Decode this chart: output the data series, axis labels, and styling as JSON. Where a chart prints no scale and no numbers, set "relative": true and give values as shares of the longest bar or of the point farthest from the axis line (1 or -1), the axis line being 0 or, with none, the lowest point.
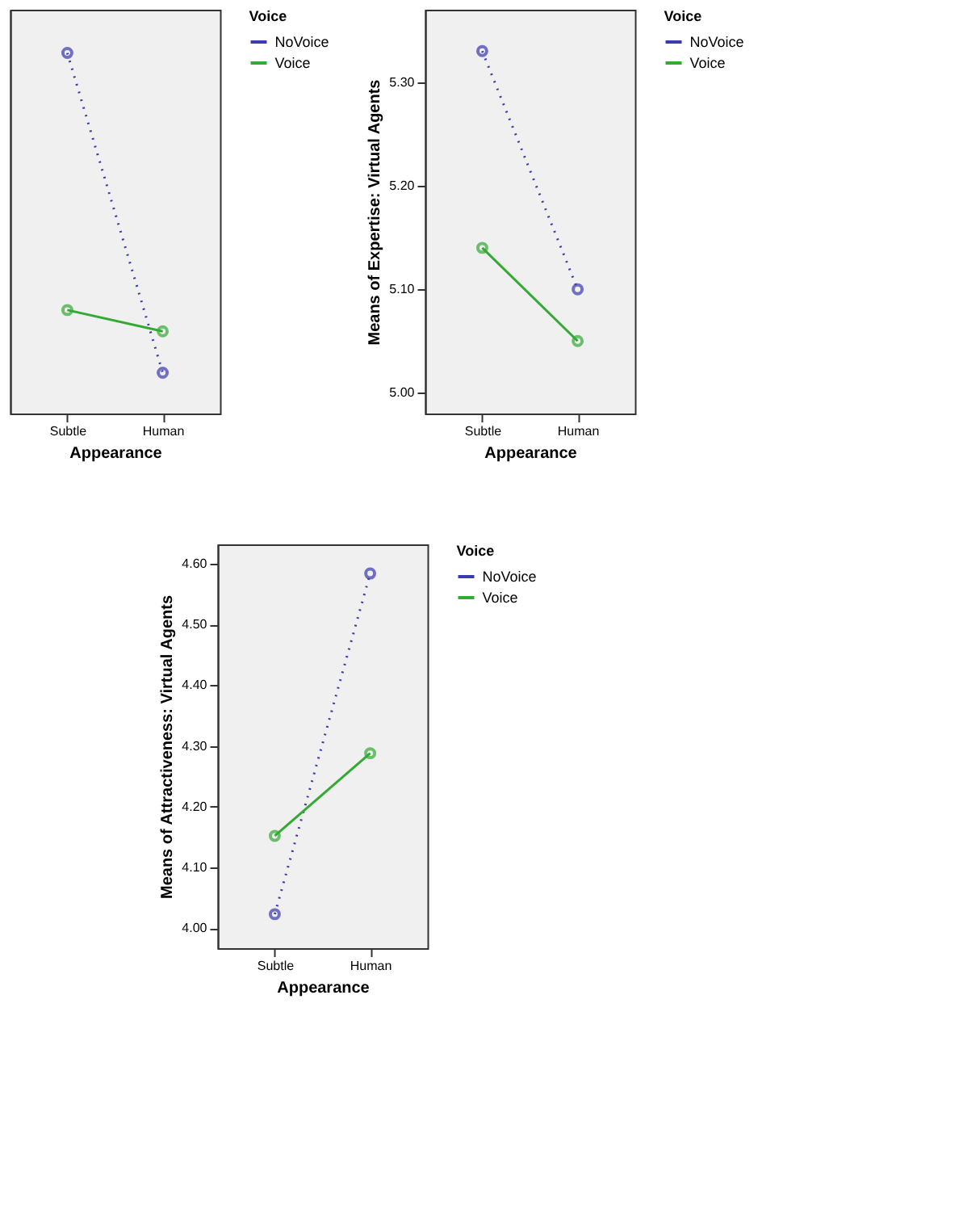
{
  "chart_data": [
    {
      "type": "line",
      "relative": true,
      "tick_labels": "x",
      "xlabel": "Appearance",
      "legend_title": "Voice",
      "legend": "right",
      "grid": false,
      "marker": "circle",
      "categories": [
        "Subtle",
        "Human"
      ],
      "series": [
        {
          "name": "NoVoice",
          "color": "#3b3bb0",
          "line_style": "dotted",
          "values": [
            1,
            0.113
          ]
        },
        {
          "name": "Voice",
          "color": "#33aa33",
          "line_style": "solid",
          "values": [
            0.287,
            0.228
          ]
        }
      ]
    },
    {
      "type": "line",
      "xlabel": "Appearance",
      "ylabel": "Means of Expertise: Virtual Agents",
      "legend_title": "Voice",
      "legend": "right",
      "grid": false,
      "marker": "circle",
      "categories": [
        "Subtle",
        "Human"
      ],
      "ylim": [
        4.98,
        5.37
      ],
      "yticks": [
        {
          "value": 5.0,
          "label": "5.00"
        },
        {
          "value": 5.1,
          "label": "5.10"
        },
        {
          "value": 5.2,
          "label": "5.20"
        },
        {
          "value": 5.3,
          "label": "5.30"
        }
      ],
      "series": [
        {
          "name": "NoVoice",
          "color": "#3b3bb0",
          "line_style": "dotted",
          "values": [
            5.33,
            5.1
          ]
        },
        {
          "name": "Voice",
          "color": "#33aa33",
          "line_style": "solid",
          "values": [
            5.14,
            5.05
          ]
        }
      ]
    },
    {
      "type": "line",
      "xlabel": "Appearance",
      "ylabel": "Means of Attractiveness: Virtual Agents",
      "legend_title": "Voice",
      "legend": "right",
      "grid": false,
      "marker": "circle",
      "categories": [
        "Subtle",
        "Human"
      ],
      "ylim": [
        3.967,
        4.632
      ],
      "yticks": [
        {
          "value": 4.0,
          "label": "4.00"
        },
        {
          "value": 4.1,
          "label": "4.10"
        },
        {
          "value": 4.2,
          "label": "4.20"
        },
        {
          "value": 4.3,
          "label": "4.30"
        },
        {
          "value": 4.4,
          "label": "4.40"
        },
        {
          "value": 4.5,
          "label": "4.50"
        },
        {
          "value": 4.6,
          "label": "4.60"
        }
      ],
      "series": [
        {
          "name": "NoVoice",
          "color": "#3b3bb0",
          "line_style": "dotted",
          "values": [
            4.023,
            4.584
          ]
        },
        {
          "name": "Voice",
          "color": "#33aa33",
          "line_style": "solid",
          "values": [
            4.152,
            4.288
          ]
        }
      ]
    }
  ]
}
